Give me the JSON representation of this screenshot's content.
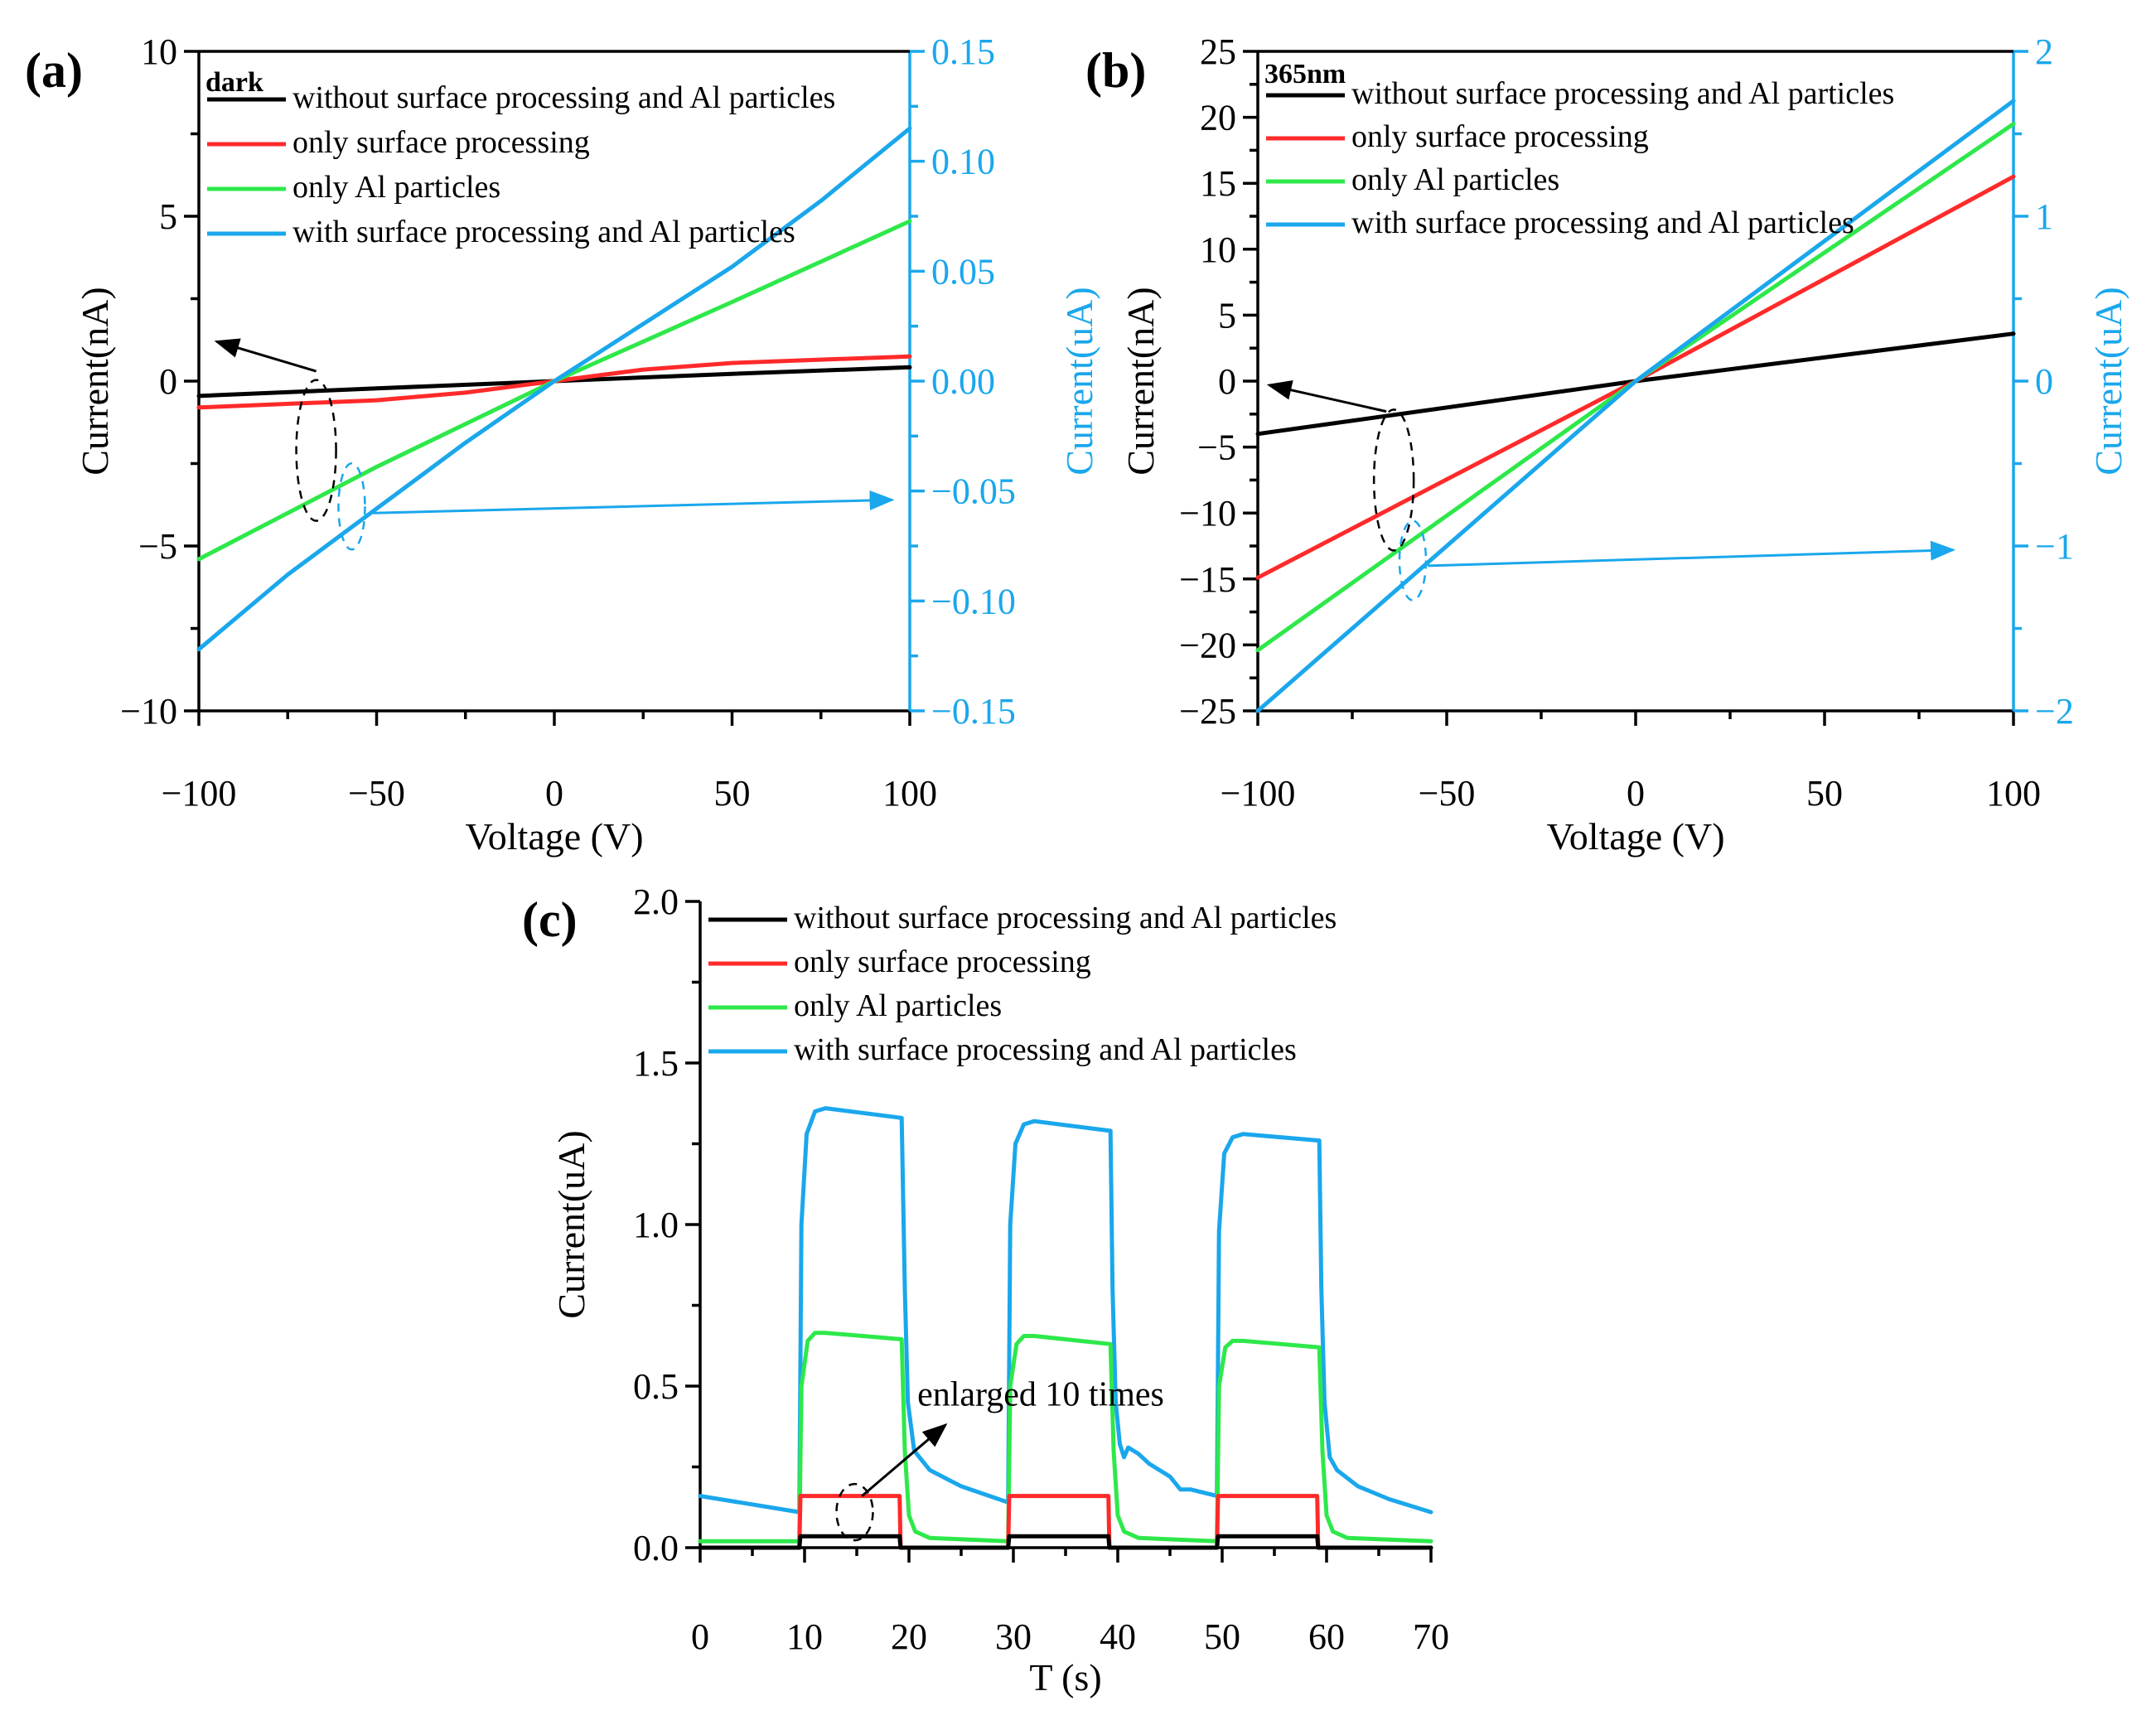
{
  "chart_data": [
    {
      "panel_label": "(a)",
      "type": "line",
      "title": "dark",
      "xlabel": "Voltage (V)",
      "ylabel": "Current(nA)",
      "y2label": "Current(uA)",
      "xlim": [
        -100,
        100
      ],
      "ylim": [
        -10,
        10
      ],
      "y2lim": [
        -0.15,
        0.15
      ],
      "xticks": [
        -100,
        -50,
        0,
        50,
        100
      ],
      "xtick_labels": [
        "−100",
        "−50",
        "0",
        "50",
        "100"
      ],
      "yticks": [
        -10,
        -5,
        0,
        5,
        10
      ],
      "ytick_labels": [
        "−10",
        "−5",
        "0",
        "5",
        "10"
      ],
      "y2ticks": [
        -0.15,
        -0.1,
        -0.05,
        0.0,
        0.05,
        0.1,
        0.15
      ],
      "y2tick_labels": [
        "−0.15",
        "−0.10",
        "−0.05",
        "0.00",
        "0.05",
        "0.10",
        "0.15"
      ],
      "legend": [
        {
          "label": "without surface processing and Al particles",
          "color": "#000000"
        },
        {
          "label": "only surface processing",
          "color": "#ff2a2a"
        },
        {
          "label": "only Al particles",
          "color": "#2ee84a"
        },
        {
          "label": "with surface processing and Al particles",
          "color": "#1aa7ec"
        }
      ],
      "series": [
        {
          "name": "without surface processing and Al particles",
          "axis": "left",
          "color": "#000000",
          "x": [
            -100,
            -50,
            0,
            50,
            100
          ],
          "y": [
            -0.45,
            -0.22,
            0.0,
            0.22,
            0.42
          ]
        },
        {
          "name": "only surface processing",
          "axis": "left",
          "color": "#ff2a2a",
          "x": [
            -100,
            -50,
            -25,
            0,
            25,
            50,
            100
          ],
          "y": [
            -0.8,
            -0.58,
            -0.35,
            0.0,
            0.35,
            0.55,
            0.75
          ]
        },
        {
          "name": "only Al particles",
          "axis": "left",
          "color": "#2ee84a",
          "x": [
            -100,
            -50,
            0,
            50,
            100
          ],
          "y": [
            -5.4,
            -2.6,
            0.0,
            2.4,
            4.85
          ]
        },
        {
          "name": "with surface processing and Al particles",
          "axis": "right",
          "color": "#1aa7ec",
          "x": [
            -100,
            -75,
            -50,
            -25,
            0,
            25,
            50,
            75,
            100
          ],
          "y": [
            -0.122,
            -0.088,
            -0.058,
            -0.028,
            0.0,
            0.026,
            0.052,
            0.082,
            0.115
          ]
        }
      ]
    },
    {
      "panel_label": "(b)",
      "type": "line",
      "title": "365nm",
      "xlabel": "Voltage (V)",
      "ylabel": "Current(nA)",
      "y2label": "Current(uA)",
      "xlim": [
        -100,
        100
      ],
      "ylim": [
        -25,
        25
      ],
      "y2lim": [
        -2,
        2
      ],
      "xticks": [
        -100,
        -50,
        0,
        50,
        100
      ],
      "xtick_labels": [
        "−100",
        "−50",
        "0",
        "50",
        "100"
      ],
      "yticks": [
        -25,
        -20,
        -15,
        -10,
        -5,
        0,
        5,
        10,
        15,
        20,
        25
      ],
      "ytick_labels": [
        "−25",
        "−20",
        "−15",
        "−10",
        "−5",
        "0",
        "5",
        "10",
        "15",
        "20",
        "25"
      ],
      "y2ticks": [
        -2,
        -1,
        0,
        1,
        2
      ],
      "y2tick_labels": [
        "−2",
        "−1",
        "0",
        "1",
        "2"
      ],
      "legend": [
        {
          "label": "without surface processing and Al particles",
          "color": "#000000"
        },
        {
          "label": "only surface processing",
          "color": "#ff2a2a"
        },
        {
          "label": "only Al particles",
          "color": "#2ee84a"
        },
        {
          "label": "with surface processing and Al particles",
          "color": "#1aa7ec"
        }
      ],
      "series": [
        {
          "name": "without surface processing and Al particles",
          "axis": "left",
          "color": "#000000",
          "x": [
            -100,
            0,
            100
          ],
          "y": [
            -4.0,
            0.0,
            3.6
          ]
        },
        {
          "name": "only surface processing",
          "axis": "left",
          "color": "#ff2a2a",
          "x": [
            -100,
            0,
            100
          ],
          "y": [
            -14.9,
            0.0,
            15.5
          ]
        },
        {
          "name": "only Al particles",
          "axis": "left",
          "color": "#2ee84a",
          "x": [
            -100,
            0,
            100
          ],
          "y": [
            -20.4,
            0.0,
            19.5
          ]
        },
        {
          "name": "with surface processing and Al particles",
          "axis": "right",
          "color": "#1aa7ec",
          "x": [
            -100,
            0,
            100
          ],
          "y": [
            -2.0,
            0.0,
            1.7
          ]
        }
      ]
    },
    {
      "panel_label": "(c)",
      "type": "line",
      "title": "",
      "xlabel": "T (s)",
      "ylabel": "Current(uA)",
      "xlim": [
        0,
        70
      ],
      "ylim": [
        0,
        2.0
      ],
      "xticks": [
        0,
        10,
        20,
        30,
        40,
        50,
        60,
        70
      ],
      "xtick_labels": [
        "0",
        "10",
        "20",
        "30",
        "40",
        "50",
        "60",
        "70"
      ],
      "yticks": [
        0,
        0.5,
        1.0,
        1.5,
        2.0
      ],
      "ytick_labels": [
        "0.0",
        "0.5",
        "1.0",
        "1.5",
        "2.0"
      ],
      "annotation": "enlarged 10 times",
      "legend": [
        {
          "label": "without surface processing and Al particles",
          "color": "#000000"
        },
        {
          "label": "only surface processing",
          "color": "#ff2a2a"
        },
        {
          "label": "only Al particles",
          "color": "#2ee84a"
        },
        {
          "label": "with surface processing and Al particles",
          "color": "#1aa7ec"
        }
      ],
      "series": [
        {
          "name": "with surface processing and Al particles",
          "color": "#1aa7ec",
          "x": [
            0,
            9.5,
            9.7,
            10.2,
            11,
            12,
            19.3,
            19.6,
            19.9,
            20.5,
            22,
            25,
            29.5,
            29.7,
            30.2,
            31,
            32,
            39.3,
            39.5,
            39.8,
            40.2,
            40.6,
            41,
            42,
            43,
            45,
            46,
            47,
            49.5,
            49.7,
            50.2,
            51,
            52,
            59.3,
            59.5,
            59.8,
            60.3,
            61,
            63,
            66,
            70
          ],
          "y": [
            0.16,
            0.11,
            1.0,
            1.28,
            1.35,
            1.36,
            1.33,
            0.8,
            0.45,
            0.3,
            0.24,
            0.19,
            0.14,
            1.0,
            1.25,
            1.31,
            1.32,
            1.29,
            0.8,
            0.45,
            0.32,
            0.28,
            0.31,
            0.29,
            0.26,
            0.22,
            0.18,
            0.18,
            0.16,
            0.98,
            1.22,
            1.27,
            1.28,
            1.26,
            0.8,
            0.45,
            0.28,
            0.24,
            0.19,
            0.15,
            0.11
          ]
        },
        {
          "name": "only Al particles",
          "color": "#2ee84a",
          "x": [
            0,
            9.5,
            9.7,
            10.3,
            11,
            12,
            19.3,
            19.6,
            20,
            20.6,
            22,
            29.5,
            29.7,
            30.3,
            31,
            32,
            39.3,
            39.6,
            40,
            40.6,
            42,
            49.5,
            49.7,
            50.3,
            51,
            52,
            59.3,
            59.6,
            60,
            60.6,
            62,
            70
          ],
          "y": [
            0.02,
            0.02,
            0.5,
            0.64,
            0.665,
            0.665,
            0.645,
            0.3,
            0.1,
            0.05,
            0.03,
            0.02,
            0.5,
            0.63,
            0.655,
            0.655,
            0.63,
            0.3,
            0.1,
            0.05,
            0.03,
            0.02,
            0.5,
            0.62,
            0.64,
            0.64,
            0.62,
            0.3,
            0.1,
            0.05,
            0.03,
            0.02
          ]
        },
        {
          "name": "only surface processing",
          "color": "#ff2a2a",
          "x": [
            0,
            9.5,
            9.6,
            19.1,
            19.2,
            29.5,
            29.6,
            39.1,
            39.2,
            49.5,
            49.6,
            59.1,
            59.2,
            70
          ],
          "y": [
            0.0,
            0.0,
            0.16,
            0.16,
            0.0,
            0.0,
            0.16,
            0.16,
            0.0,
            0.0,
            0.16,
            0.16,
            0.0,
            0.0
          ]
        },
        {
          "name": "without surface processing and Al particles",
          "color": "#000000",
          "x": [
            0,
            9.5,
            9.6,
            19.1,
            19.2,
            29.5,
            29.6,
            39.1,
            39.2,
            49.5,
            49.6,
            59.1,
            59.2,
            70
          ],
          "y": [
            0.0,
            0.0,
            0.035,
            0.035,
            0.0,
            0.0,
            0.035,
            0.035,
            0.0,
            0.0,
            0.035,
            0.035,
            0.0,
            0.0
          ]
        }
      ]
    }
  ]
}
